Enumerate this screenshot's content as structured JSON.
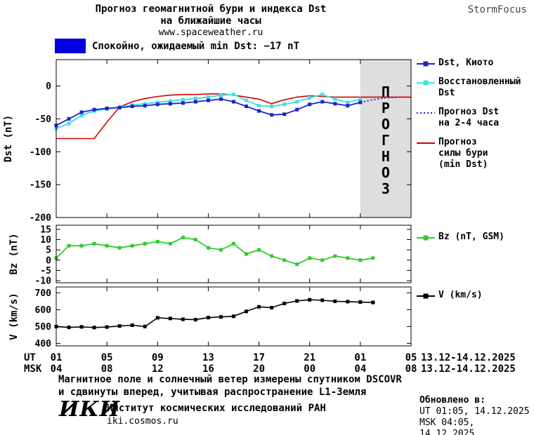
{
  "header": {
    "title_line1": "Прогноз геомагнитной бури и индекса Dst",
    "title_line2": "на ближайшие часы",
    "site": "www.spaceweather.ru",
    "brand": "StormFocus"
  },
  "status": {
    "text": "Спокойно, ожидаемый min Dst: −17 nT",
    "swatch_color": "#0000e0"
  },
  "colors": {
    "kyoto": "#2222cc",
    "restored": "#44e0e0",
    "forecast_dst": "#2222cc",
    "forecast_strength": "#d40000",
    "bz": "#2fcc2f",
    "v": "#000000",
    "forecast_band": "#dedede",
    "forecast_band_text": "#b5b5b5"
  },
  "forecast_band_label": "ПРОГНОЗ",
  "legend_main": [
    {
      "marker": "square-line",
      "color": "#2222cc",
      "lines": [
        "Dst, Киото"
      ]
    },
    {
      "marker": "square-line",
      "color": "#44e0e0",
      "lines": [
        "Восстановленный",
        "Dst"
      ]
    },
    {
      "marker": "dotted",
      "color": "#2222cc",
      "lines": [
        "Прогноз Dst",
        "на 2-4 часа"
      ]
    },
    {
      "marker": "line",
      "color": "#d40000",
      "lines": [
        "Прогноз",
        "силы бури",
        "(min Dst)"
      ]
    }
  ],
  "legend_bz": [
    {
      "marker": "square-line",
      "color": "#2fcc2f",
      "lines": [
        "Bz (nT, GSM)"
      ]
    }
  ],
  "legend_v": [
    {
      "marker": "square-line",
      "color": "#000000",
      "lines": [
        "V (km/s)"
      ]
    }
  ],
  "xaxis": {
    "ut_label": "UT",
    "msk_label": "MSK",
    "ut_ticks": [
      "01",
      "05",
      "09",
      "13",
      "17",
      "21",
      "01",
      "05"
    ],
    "msk_ticks": [
      "04",
      "08",
      "12",
      "16",
      "20",
      "00",
      "04",
      "08"
    ],
    "ut_date": "13.12-14.12.2025",
    "msk_date": "13.12-14.12.2025"
  },
  "footnote_line1": "Магнитное поле и солнечный ветер измерены спутником DSCOVR",
  "footnote_line2": "и сдвинуты вперед, учитывая распространение L1-Земля",
  "footer": {
    "logo": "ИКИ",
    "org": "Институт космических исследований РАН",
    "site": "iki.cosmos.ru",
    "updated_label": "Обновлено в:",
    "updated_ut": "UT  01:05, 14.12.2025",
    "updated_msk": "MSK 04:05, 14.12.2025"
  },
  "chart_data": [
    {
      "type": "line",
      "name": "dst",
      "ylabel": "Dst (nT)",
      "ylim": [
        -200,
        40
      ],
      "yticks": [
        0,
        -50,
        -100,
        -150,
        -200
      ],
      "xlim": [
        1,
        29
      ],
      "xticks": [
        1,
        5,
        9,
        13,
        17,
        21,
        25,
        29
      ],
      "forecast_region": [
        25,
        29
      ],
      "series": [
        {
          "name": "forecast_strength",
          "color": "#d40000",
          "marker": false,
          "width": 1.6,
          "x_start": 1,
          "values": [
            -80,
            -80,
            -80,
            -80,
            -55,
            -32,
            -24,
            -19,
            -16,
            -14,
            -13,
            -13,
            -12,
            -12,
            -14,
            -17,
            -20,
            -27,
            -21,
            -17,
            -15,
            -16,
            -17,
            -17,
            -17,
            -17,
            -17,
            -17,
            -17
          ]
        },
        {
          "name": "restored",
          "color": "#44e0e0",
          "marker": true,
          "width": 2,
          "x_start": 1,
          "values": [
            -65,
            -57,
            -45,
            -38,
            -35,
            -32,
            -29,
            -27,
            -25,
            -23,
            -21,
            -19,
            -17,
            -14,
            -13,
            -22,
            -30,
            -31,
            -28,
            -24,
            -18,
            -13,
            -20,
            -25,
            -20
          ]
        },
        {
          "name": "kyoto",
          "color": "#2222cc",
          "marker": true,
          "width": 1.8,
          "x_start": 1,
          "values": [
            -60,
            -50,
            -40,
            -36,
            -34,
            -33,
            -31,
            -30,
            -28,
            -27,
            -26,
            -24,
            -22,
            -20,
            -24,
            -31,
            -38,
            -44,
            -43,
            -36,
            -28,
            -24,
            -27,
            -30,
            -25
          ]
        },
        {
          "name": "forecast_dst",
          "color": "#2222cc",
          "marker": false,
          "dashed": true,
          "width": 2,
          "x_start": 25,
          "values": [
            -25,
            -21,
            -18,
            -17
          ]
        }
      ]
    },
    {
      "type": "line",
      "name": "bz",
      "ylabel": "Bz (nT)",
      "ylim": [
        -11,
        17
      ],
      "yticks": [
        15,
        10,
        5,
        0,
        -5,
        -10
      ],
      "xlim": [
        1,
        29
      ],
      "xticks": [
        1,
        5,
        9,
        13,
        17,
        21,
        25,
        29
      ],
      "series": [
        {
          "name": "bz",
          "color": "#2fcc2f",
          "marker": true,
          "width": 1.8,
          "x_start": 1,
          "values": [
            1,
            7,
            7,
            8,
            7,
            6,
            7,
            8,
            9,
            8,
            11,
            10,
            6,
            5,
            8,
            3,
            5,
            2,
            0,
            -2,
            1,
            0,
            2,
            1,
            0,
            1
          ]
        }
      ]
    },
    {
      "type": "line",
      "name": "v",
      "ylabel": "V (km/s)",
      "ylim": [
        385,
        735
      ],
      "yticks": [
        400,
        500,
        600,
        700
      ],
      "xlim": [
        1,
        29
      ],
      "xticks": [
        1,
        5,
        9,
        13,
        17,
        21,
        25,
        29
      ],
      "series": [
        {
          "name": "v",
          "color": "#000000",
          "marker": true,
          "width": 1.6,
          "x_start": 1,
          "values": [
            500,
            495,
            498,
            494,
            497,
            503,
            508,
            500,
            552,
            548,
            543,
            541,
            553,
            557,
            561,
            590,
            617,
            612,
            637,
            652,
            659,
            656,
            650,
            648,
            645,
            643
          ]
        }
      ]
    }
  ]
}
